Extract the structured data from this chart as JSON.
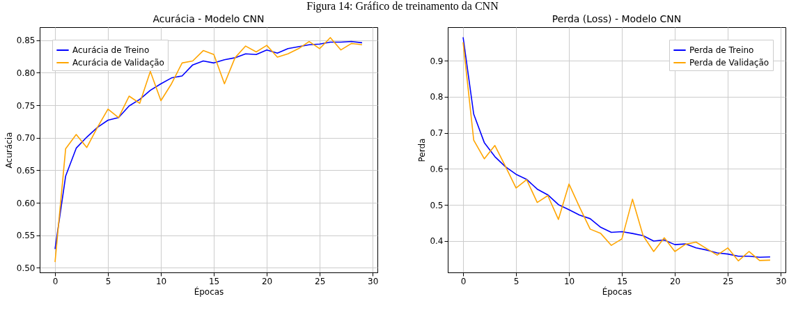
{
  "chart_data": [
    {
      "type": "line",
      "title": "Acurácia - Modelo CNN",
      "xlabel": "Épocas",
      "ylabel": "Acurácia",
      "annotations": [
        "Figura 14: Gráfico de treinamento da CNN"
      ],
      "x": [
        0,
        1,
        2,
        3,
        4,
        5,
        6,
        7,
        8,
        9,
        10,
        11,
        12,
        13,
        14,
        15,
        16,
        17,
        18,
        19,
        20,
        21,
        22,
        23,
        24,
        25,
        26,
        27,
        28,
        29
      ],
      "series": [
        {
          "name": "Acurácia de Treino",
          "color": "#0000ff",
          "values": [
            0.529,
            0.641,
            0.684,
            0.701,
            0.716,
            0.727,
            0.731,
            0.749,
            0.759,
            0.773,
            0.783,
            0.792,
            0.795,
            0.812,
            0.818,
            0.815,
            0.82,
            0.823,
            0.829,
            0.828,
            0.835,
            0.83,
            0.837,
            0.84,
            0.843,
            0.844,
            0.847,
            0.847,
            0.848,
            0.846
          ]
        },
        {
          "name": "Acurácia de Validação",
          "color": "#ffa500",
          "values": [
            0.509,
            0.683,
            0.705,
            0.685,
            0.716,
            0.744,
            0.731,
            0.764,
            0.753,
            0.802,
            0.757,
            0.783,
            0.815,
            0.818,
            0.834,
            0.828,
            0.783,
            0.823,
            0.841,
            0.832,
            0.842,
            0.824,
            0.829,
            0.837,
            0.848,
            0.837,
            0.854,
            0.835,
            0.845,
            0.843
          ]
        }
      ],
      "xlim": [
        -1.45,
        30.45
      ],
      "xticks": [
        0,
        5,
        10,
        15,
        20,
        25,
        30
      ],
      "ylim": [
        0.493,
        0.87
      ],
      "yticks": [
        {
          "value": 0.5,
          "label": "0.50"
        },
        0.55,
        {
          "value": 0.6,
          "label": "0.60"
        },
        0.65,
        {
          "value": 0.7,
          "label": "0.70"
        },
        0.75,
        {
          "value": 0.8,
          "label": "0.80"
        },
        0.85
      ],
      "grid": true,
      "legend": "top left"
    },
    {
      "type": "line",
      "title": "Perda (Loss) - Modelo CNN",
      "xlabel": "Épocas",
      "ylabel": "Perda",
      "x": [
        0,
        1,
        2,
        3,
        4,
        5,
        6,
        7,
        8,
        9,
        10,
        11,
        12,
        13,
        14,
        15,
        16,
        17,
        18,
        19,
        20,
        21,
        22,
        23,
        24,
        25,
        26,
        27,
        28,
        29
      ],
      "series": [
        {
          "name": "Perda de Treino",
          "color": "#0000ff",
          "values": [
            0.965,
            0.752,
            0.673,
            0.634,
            0.606,
            0.585,
            0.571,
            0.544,
            0.528,
            0.501,
            0.487,
            0.472,
            0.462,
            0.438,
            0.424,
            0.426,
            0.421,
            0.415,
            0.4,
            0.403,
            0.39,
            0.392,
            0.381,
            0.375,
            0.367,
            0.364,
            0.358,
            0.358,
            0.355,
            0.356
          ]
        },
        {
          "name": "Perda de Validação",
          "color": "#ffa500",
          "values": [
            0.951,
            0.68,
            0.628,
            0.665,
            0.607,
            0.547,
            0.57,
            0.507,
            0.526,
            0.46,
            0.558,
            0.494,
            0.433,
            0.421,
            0.388,
            0.406,
            0.516,
            0.415,
            0.371,
            0.409,
            0.371,
            0.391,
            0.397,
            0.379,
            0.361,
            0.381,
            0.345,
            0.371,
            0.346,
            0.347
          ]
        }
      ],
      "xlim": [
        -1.45,
        30.45
      ],
      "xticks": [
        0,
        5,
        10,
        15,
        20,
        25,
        30
      ],
      "ylim": [
        0.313,
        0.993
      ],
      "yticks": [
        0.4,
        0.5,
        0.6,
        0.7,
        0.8,
        0.9
      ],
      "grid": true,
      "legend": "top right"
    }
  ]
}
